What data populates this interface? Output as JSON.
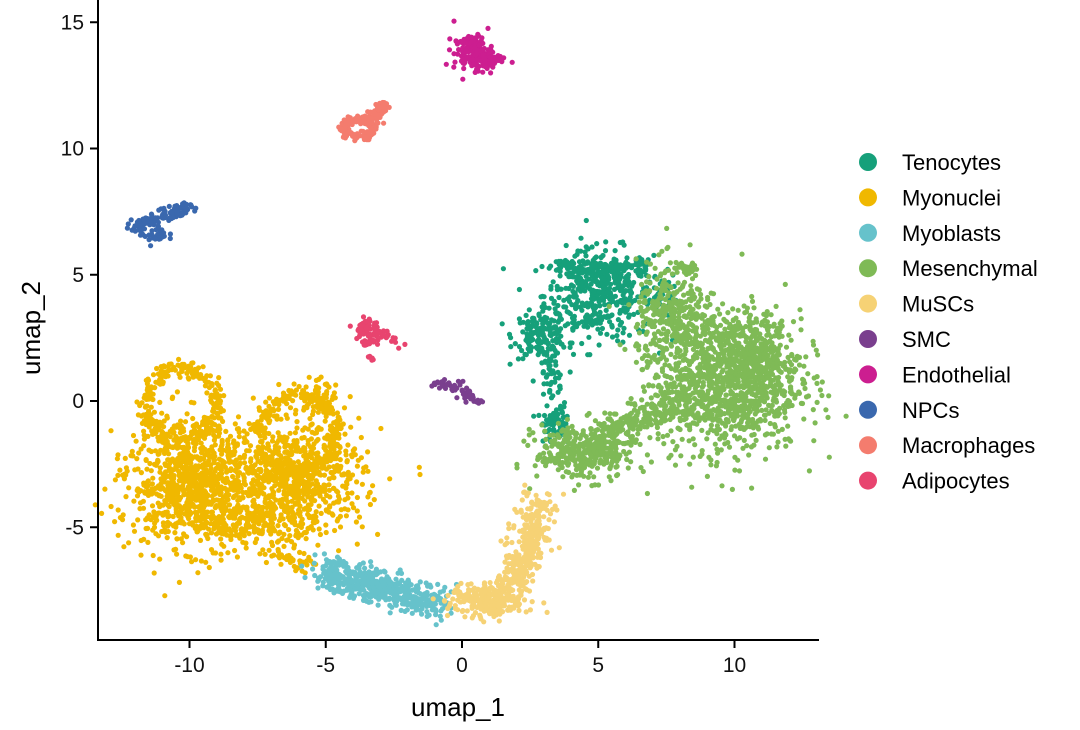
{
  "chart_data": {
    "type": "scatter",
    "title": "",
    "xlabel": "umap_1",
    "ylabel": "umap_2",
    "xlim": [
      -13.3,
      13.2
    ],
    "ylim": [
      -9.5,
      16
    ],
    "xticks": [
      -10,
      -5,
      0,
      5,
      10
    ],
    "yticks": [
      -5,
      0,
      5,
      10,
      15
    ],
    "xtick_labels": [
      "-10",
      "-5",
      "0",
      "5",
      "10"
    ],
    "ytick_labels": [
      "-5",
      "0",
      "5",
      "10",
      "15"
    ],
    "grid": false,
    "legend_position": "right",
    "note": "Cluster point clouds approximated by shape descriptors in data units: blob=[cx,cy,sx,sy,n], seg=[x1,y1,x2,y2,spread,n], ring=[cx,cy,rx,ry,spread,n]",
    "series": [
      {
        "name": "Tenocytes",
        "color": "#16A07A",
        "shapes": [
          [
            "blob",
            5.0,
            4.2,
            1.0,
            0.9,
            420
          ],
          [
            "blob",
            2.9,
            2.6,
            0.5,
            0.45,
            160
          ],
          [
            "seg",
            3.5,
            5.3,
            6.8,
            5.3,
            0.2,
            120
          ],
          [
            "seg",
            3.2,
            2.0,
            3.5,
            -1.2,
            0.2,
            70
          ],
          [
            "blob",
            3.3,
            -1.0,
            0.3,
            0.3,
            40
          ],
          [
            "blob",
            7.3,
            4.3,
            0.3,
            0.4,
            30
          ]
        ]
      },
      {
        "name": "Myonuclei",
        "color": "#F0B800",
        "shapes": [
          [
            "blob",
            -10.0,
            -3.2,
            1.1,
            1.2,
            850
          ],
          [
            "blob",
            -6.2,
            -3.0,
            1.3,
            1.1,
            750
          ],
          [
            "ring",
            -10.3,
            -0.1,
            1.3,
            1.4,
            0.15,
            260
          ],
          [
            "ring",
            -6.0,
            -1.2,
            1.4,
            1.5,
            0.15,
            240
          ],
          [
            "blob",
            -8.0,
            -4.8,
            1.5,
            0.5,
            250
          ],
          [
            "seg",
            -7.5,
            -5.8,
            -5.5,
            -6.6,
            0.2,
            40
          ],
          [
            "blob",
            -5.2,
            0.0,
            0.4,
            0.5,
            60
          ]
        ]
      },
      {
        "name": "Myoblasts",
        "color": "#66C2CB",
        "shapes": [
          [
            "seg",
            -5.2,
            -6.8,
            -0.7,
            -8.0,
            0.32,
            520
          ]
        ]
      },
      {
        "name": "Mesenchymal",
        "color": "#7FBA56",
        "shapes": [
          [
            "blob",
            9.8,
            0.8,
            1.3,
            1.4,
            1100
          ],
          [
            "blob",
            7.8,
            3.2,
            0.7,
            1.1,
            350
          ],
          [
            "blob",
            10.8,
            2.0,
            0.7,
            0.6,
            200
          ],
          [
            "blob",
            4.5,
            -2.0,
            0.9,
            0.55,
            380
          ],
          [
            "seg",
            5.3,
            -1.2,
            8.3,
            0.0,
            0.35,
            220
          ],
          [
            "seg",
            8.0,
            5.2,
            8.6,
            5.3,
            0.15,
            30
          ]
        ]
      },
      {
        "name": "MuSCs",
        "color": "#F6D275",
        "shapes": [
          [
            "blob",
            1.0,
            -7.9,
            0.7,
            0.35,
            280
          ],
          [
            "seg",
            1.9,
            -7.3,
            2.9,
            -4.0,
            0.35,
            300
          ]
        ]
      },
      {
        "name": "SMC",
        "color": "#7A3F8E",
        "shapes": [
          [
            "seg",
            -1.2,
            0.7,
            0.0,
            0.6,
            0.12,
            30
          ],
          [
            "seg",
            -0.1,
            0.4,
            0.8,
            -0.2,
            0.12,
            30
          ]
        ]
      },
      {
        "name": "Endothelial",
        "color": "#CC1E90",
        "shapes": [
          [
            "blob",
            0.4,
            13.8,
            0.35,
            0.35,
            160
          ],
          [
            "blob",
            1.0,
            13.5,
            0.3,
            0.2,
            50
          ]
        ]
      },
      {
        "name": "NPCs",
        "color": "#3A68AE",
        "shapes": [
          [
            "seg",
            -12.0,
            6.9,
            -10.0,
            7.7,
            0.15,
            120
          ],
          [
            "blob",
            -11.3,
            6.6,
            0.25,
            0.2,
            30
          ]
        ]
      },
      {
        "name": "Macrophages",
        "color": "#F47C6E",
        "shapes": [
          [
            "ring",
            -3.8,
            10.8,
            0.55,
            0.35,
            0.1,
            120
          ],
          [
            "seg",
            -3.5,
            11.0,
            -2.8,
            11.8,
            0.12,
            60
          ]
        ]
      },
      {
        "name": "Adipocytes",
        "color": "#E8446F",
        "shapes": [
          [
            "blob",
            -3.5,
            2.8,
            0.25,
            0.3,
            60
          ],
          [
            "seg",
            -3.2,
            2.8,
            -2.2,
            2.2,
            0.1,
            25
          ],
          [
            "seg",
            -3.6,
            2.4,
            -3.2,
            1.6,
            0.1,
            15
          ]
        ]
      }
    ]
  }
}
